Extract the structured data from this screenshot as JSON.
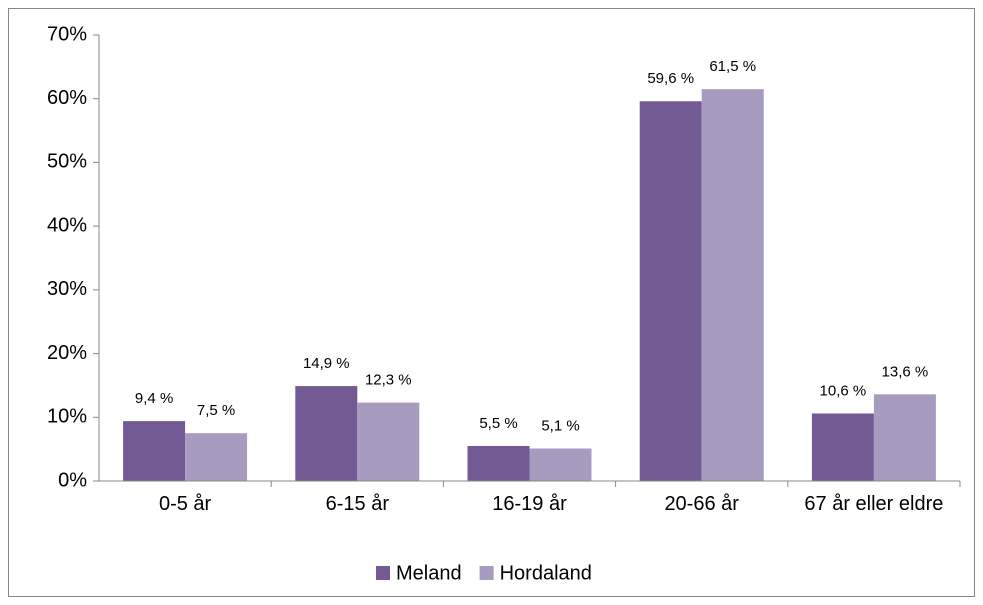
{
  "chart_data": {
    "type": "bar",
    "categories": [
      "0-5 år",
      "6-15 år",
      "16-19 år",
      "20-66 år",
      "67 år eller eldre"
    ],
    "series": [
      {
        "name": "Meland",
        "color": "#735a94",
        "values": [
          9.4,
          14.9,
          5.5,
          59.6,
          10.6
        ],
        "value_labels": [
          "9,4 %",
          "14,9 %",
          "5,5 %",
          "59,6 %",
          "10,6 %"
        ]
      },
      {
        "name": "Hordaland",
        "color": "#a89bc0",
        "values": [
          7.5,
          12.3,
          5.1,
          61.5,
          13.6
        ],
        "value_labels": [
          "7,5 %",
          "12,3 %",
          "5,1 %",
          "61,5 %",
          "13,6 %"
        ]
      }
    ],
    "ylim": [
      0,
      70
    ],
    "yticks": [
      {
        "value": 0,
        "label": "0%"
      },
      {
        "value": 10,
        "label": "10%"
      },
      {
        "value": 20,
        "label": "20%"
      },
      {
        "value": 30,
        "label": "30%"
      },
      {
        "value": 40,
        "label": "40%"
      },
      {
        "value": 50,
        "label": "50%"
      },
      {
        "value": 60,
        "label": "60%"
      },
      {
        "value": 70,
        "label": "70%"
      }
    ],
    "grid": false,
    "legend": "bottom"
  }
}
